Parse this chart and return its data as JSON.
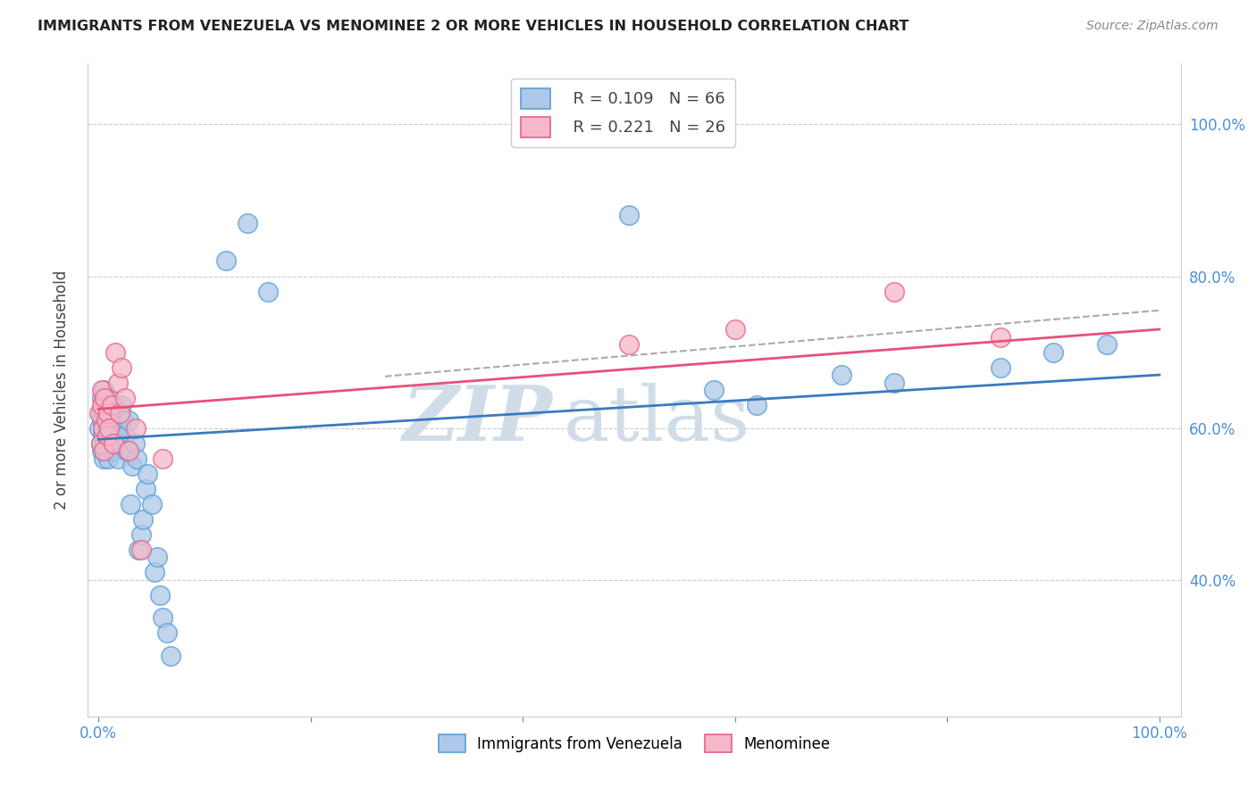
{
  "title": "IMMIGRANTS FROM VENEZUELA VS MENOMINEE 2 OR MORE VEHICLES IN HOUSEHOLD CORRELATION CHART",
  "source": "Source: ZipAtlas.com",
  "ylabel": "2 or more Vehicles in Household",
  "legend_blue_R": "R = 0.109",
  "legend_blue_N": "N = 66",
  "legend_pink_R": "R = 0.221",
  "legend_pink_N": "N = 26",
  "blue_face_color": "#adc8e8",
  "blue_edge_color": "#5a9fd4",
  "pink_face_color": "#f5b8c8",
  "pink_edge_color": "#e8608a",
  "blue_line_color": "#3a7abf",
  "pink_line_color": "#e8507a",
  "dash_line_color": "#aaaaaa",
  "watermark_color": "#d0dde8",
  "blue_points_x": [
    0.001,
    0.002,
    0.002,
    0.003,
    0.003,
    0.003,
    0.004,
    0.004,
    0.005,
    0.005,
    0.005,
    0.006,
    0.006,
    0.007,
    0.007,
    0.008,
    0.008,
    0.009,
    0.009,
    0.01,
    0.01,
    0.011,
    0.011,
    0.012,
    0.013,
    0.013,
    0.014,
    0.015,
    0.016,
    0.017,
    0.018,
    0.019,
    0.02,
    0.021,
    0.022,
    0.023,
    0.025,
    0.027,
    0.028,
    0.03,
    0.032,
    0.034,
    0.036,
    0.038,
    0.04,
    0.042,
    0.044,
    0.046,
    0.05,
    0.053,
    0.055,
    0.058,
    0.06,
    0.065,
    0.068,
    0.12,
    0.14,
    0.16,
    0.5,
    0.58,
    0.62,
    0.7,
    0.75,
    0.85,
    0.9,
    0.95
  ],
  "blue_points_y": [
    0.6,
    0.62,
    0.58,
    0.61,
    0.64,
    0.57,
    0.59,
    0.63,
    0.6,
    0.56,
    0.65,
    0.58,
    0.62,
    0.59,
    0.61,
    0.57,
    0.6,
    0.56,
    0.63,
    0.58,
    0.64,
    0.6,
    0.62,
    0.59,
    0.61,
    0.57,
    0.63,
    0.58,
    0.6,
    0.59,
    0.56,
    0.62,
    0.6,
    0.58,
    0.63,
    0.61,
    0.59,
    0.57,
    0.61,
    0.5,
    0.55,
    0.58,
    0.56,
    0.44,
    0.46,
    0.48,
    0.52,
    0.54,
    0.5,
    0.41,
    0.43,
    0.38,
    0.35,
    0.33,
    0.3,
    0.82,
    0.87,
    0.78,
    0.88,
    0.65,
    0.63,
    0.67,
    0.66,
    0.68,
    0.7,
    0.71
  ],
  "pink_points_x": [
    0.001,
    0.002,
    0.003,
    0.003,
    0.004,
    0.005,
    0.006,
    0.007,
    0.008,
    0.009,
    0.01,
    0.012,
    0.014,
    0.016,
    0.018,
    0.02,
    0.022,
    0.025,
    0.028,
    0.035,
    0.04,
    0.06,
    0.5,
    0.6,
    0.75,
    0.85
  ],
  "pink_points_y": [
    0.62,
    0.58,
    0.63,
    0.65,
    0.6,
    0.57,
    0.64,
    0.61,
    0.59,
    0.62,
    0.6,
    0.63,
    0.58,
    0.7,
    0.66,
    0.62,
    0.68,
    0.64,
    0.57,
    0.6,
    0.44,
    0.56,
    0.71,
    0.73,
    0.78,
    0.72
  ],
  "xlim": [
    -0.01,
    1.02
  ],
  "ylim": [
    0.22,
    1.08
  ],
  "ytick_positions": [
    0.4,
    0.6,
    0.8,
    1.0
  ],
  "ytick_labels": [
    "40.0%",
    "60.0%",
    "80.0%",
    "100.0%"
  ]
}
